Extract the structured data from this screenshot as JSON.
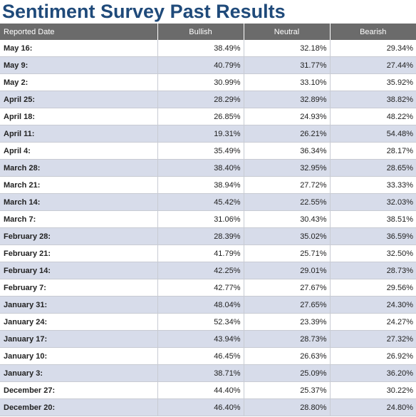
{
  "title": "Sentiment Survey Past Results",
  "colors": {
    "title": "#1f4a7a",
    "header_bg": "#6b6b6b",
    "row_alt_bg": "#d7dcea",
    "row_bg": "#ffffff"
  },
  "table": {
    "headers": {
      "date": "Reported Date",
      "bullish": "Bullish",
      "neutral": "Neutral",
      "bearish": "Bearish"
    },
    "rows": [
      {
        "date": "May 16:",
        "bullish": "38.49%",
        "neutral": "32.18%",
        "bearish": "29.34%"
      },
      {
        "date": "May 9:",
        "bullish": "40.79%",
        "neutral": "31.77%",
        "bearish": "27.44%"
      },
      {
        "date": "May 2:",
        "bullish": "30.99%",
        "neutral": "33.10%",
        "bearish": "35.92%"
      },
      {
        "date": "April 25:",
        "bullish": "28.29%",
        "neutral": "32.89%",
        "bearish": "38.82%"
      },
      {
        "date": "April 18:",
        "bullish": "26.85%",
        "neutral": "24.93%",
        "bearish": "48.22%"
      },
      {
        "date": "April 11:",
        "bullish": "19.31%",
        "neutral": "26.21%",
        "bearish": "54.48%"
      },
      {
        "date": "April 4:",
        "bullish": "35.49%",
        "neutral": "36.34%",
        "bearish": "28.17%"
      },
      {
        "date": "March 28:",
        "bullish": "38.40%",
        "neutral": "32.95%",
        "bearish": "28.65%"
      },
      {
        "date": "March 21:",
        "bullish": "38.94%",
        "neutral": "27.72%",
        "bearish": "33.33%"
      },
      {
        "date": "March 14:",
        "bullish": "45.42%",
        "neutral": "22.55%",
        "bearish": "32.03%"
      },
      {
        "date": "March 7:",
        "bullish": "31.06%",
        "neutral": "30.43%",
        "bearish": "38.51%"
      },
      {
        "date": "February 28:",
        "bullish": "28.39%",
        "neutral": "35.02%",
        "bearish": "36.59%"
      },
      {
        "date": "February 21:",
        "bullish": "41.79%",
        "neutral": "25.71%",
        "bearish": "32.50%"
      },
      {
        "date": "February 14:",
        "bullish": "42.25%",
        "neutral": "29.01%",
        "bearish": "28.73%"
      },
      {
        "date": "February 7:",
        "bullish": "42.77%",
        "neutral": "27.67%",
        "bearish": "29.56%"
      },
      {
        "date": "January 31:",
        "bullish": "48.04%",
        "neutral": "27.65%",
        "bearish": "24.30%"
      },
      {
        "date": "January 24:",
        "bullish": "52.34%",
        "neutral": "23.39%",
        "bearish": "24.27%"
      },
      {
        "date": "January 17:",
        "bullish": "43.94%",
        "neutral": "28.73%",
        "bearish": "27.32%"
      },
      {
        "date": "January 10:",
        "bullish": "46.45%",
        "neutral": "26.63%",
        "bearish": "26.92%"
      },
      {
        "date": "January 3:",
        "bullish": "38.71%",
        "neutral": "25.09%",
        "bearish": "36.20%"
      },
      {
        "date": "December 27:",
        "bullish": "44.40%",
        "neutral": "25.37%",
        "bearish": "30.22%"
      },
      {
        "date": "December 20:",
        "bullish": "46.40%",
        "neutral": "28.80%",
        "bearish": "24.80%"
      }
    ]
  }
}
